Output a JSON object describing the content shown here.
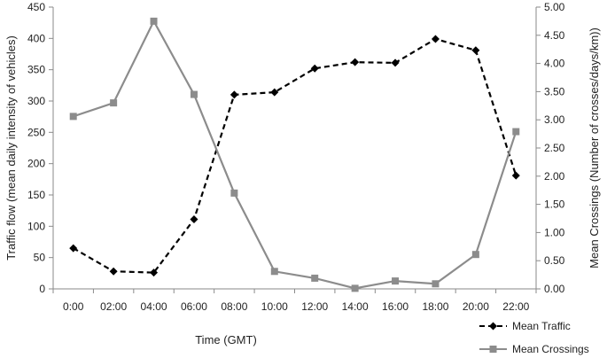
{
  "chart_data": {
    "type": "line",
    "categories": [
      "0:00",
      "02:00",
      "04:00",
      "06:00",
      "08:00",
      "10:00",
      "12:00",
      "14:00",
      "16:00",
      "18:00",
      "20:00",
      "22:00"
    ],
    "series": [
      {
        "name": "Mean Traffic",
        "axis": "left",
        "color": "#000000",
        "line_style": "dashed",
        "marker": "diamond",
        "values": [
          65,
          28,
          26,
          111,
          310,
          314,
          352,
          362,
          361,
          399,
          381,
          181
        ]
      },
      {
        "name": "Mean Crossings",
        "axis": "right",
        "color": "#8c8c8c",
        "line_style": "solid",
        "marker": "square",
        "values": [
          3.06,
          3.3,
          4.75,
          3.45,
          1.7,
          0.31,
          0.19,
          0.01,
          0.14,
          0.09,
          0.61,
          2.79
        ]
      }
    ],
    "xlabel": "Time (GMT)",
    "ylabel": "Traffic flow (mean daily intensity of vehicles)",
    "y2label": "Mean Crossings (Number of crosses/days/km))",
    "ylim": [
      0,
      450
    ],
    "y2lim": [
      0,
      5
    ],
    "yticks": [
      "0",
      "50",
      "100",
      "150",
      "200",
      "250",
      "300",
      "350",
      "400",
      "450"
    ],
    "y2ticks": [
      "0.00",
      "0.50",
      "1.00",
      "1.50",
      "2.00",
      "2.50",
      "3.00",
      "3.50",
      "4.00",
      "4.50",
      "5.00"
    ],
    "grid": false,
    "legend": "bottom-right"
  }
}
